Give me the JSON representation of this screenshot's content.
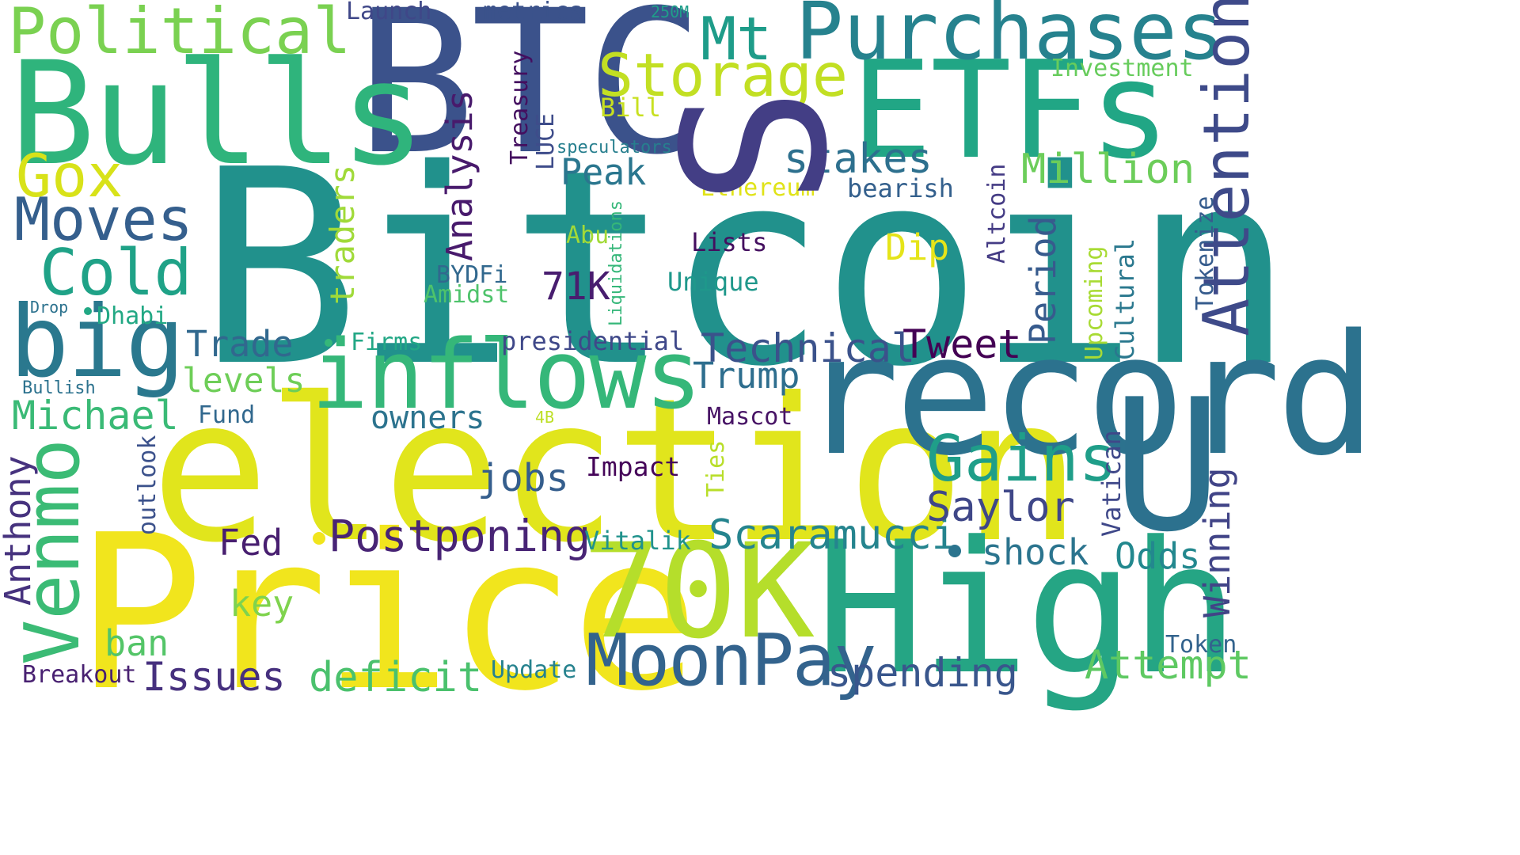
{
  "words": [
    {
      "text": "Bitcoin",
      "color": "#21918c"
    },
    {
      "text": "election",
      "color": "#e1e51c"
    },
    {
      "text": "Price",
      "color": "#f1e51d"
    },
    {
      "text": "BTC",
      "color": "#3b528b"
    },
    {
      "text": "High",
      "color": "#25a584"
    },
    {
      "text": "record",
      "color": "#2c728e"
    },
    {
      "text": "Bulls",
      "color": "#2fb47c"
    },
    {
      "text": "ETFs",
      "color": "#21a685"
    },
    {
      "text": "U",
      "color": "#2c718e"
    },
    {
      "text": "S",
      "color": "#433e85"
    },
    {
      "text": "70K",
      "color": "#b5de2b"
    },
    {
      "text": "inflows",
      "color": "#35b779"
    },
    {
      "text": "Purchases",
      "color": "#26828e"
    },
    {
      "text": "MoonPay",
      "color": "#33638d"
    },
    {
      "text": "Attention",
      "color": "#3e4a89"
    },
    {
      "text": "big",
      "color": "#2a788e"
    },
    {
      "text": "Venmo",
      "color": "#3bbb75"
    },
    {
      "text": "Political",
      "color": "#7ad151"
    },
    {
      "text": "Storage",
      "color": "#c2df23"
    },
    {
      "text": "Gains",
      "color": "#1f9e89"
    },
    {
      "text": "Cold",
      "color": "#1fa287"
    },
    {
      "text": "Moves",
      "color": "#355f8d"
    },
    {
      "text": "Gox",
      "color": "#d8e219"
    },
    {
      "text": "Mt",
      "color": "#1e9c89"
    },
    {
      "text": "Postponing",
      "color": "#482475"
    },
    {
      "text": "Scaramucci",
      "color": "#25848e"
    },
    {
      "text": "Technical",
      "color": "#3b528b"
    },
    {
      "text": "Saylor",
      "color": "#3f4788"
    },
    {
      "text": "Michael",
      "color": "#3aba76"
    },
    {
      "text": "Issues",
      "color": "#46307e"
    },
    {
      "text": "deficit",
      "color": "#4ac16d"
    },
    {
      "text": "spending",
      "color": "#39568c"
    },
    {
      "text": "Attempt",
      "color": "#5ec962"
    },
    {
      "text": "stakes",
      "color": "#2d708e"
    },
    {
      "text": "Million",
      "color": "#6ccd5a"
    },
    {
      "text": "Analysis",
      "color": "#481a6c"
    },
    {
      "text": "Winning",
      "color": "#414487"
    },
    {
      "text": "Anthony",
      "color": "#46327e"
    },
    {
      "text": "Trade",
      "color": "#31688e"
    },
    {
      "text": "levels",
      "color": "#6ece58"
    },
    {
      "text": "owners",
      "color": "#2c738e"
    },
    {
      "text": "jobs",
      "color": "#355e8d"
    },
    {
      "text": "Tweet",
      "color": "#440154"
    },
    {
      "text": "Trump",
      "color": "#2e6e8e"
    },
    {
      "text": "shock",
      "color": "#2b748e"
    },
    {
      "text": "Odds",
      "color": "#23888e"
    },
    {
      "text": "Period",
      "color": "#375b8d"
    },
    {
      "text": "Peak",
      "color": "#2a768e"
    },
    {
      "text": "traders",
      "color": "#a0da39"
    },
    {
      "text": "Fed",
      "color": "#481f70"
    },
    {
      "text": "ban",
      "color": "#54c568"
    },
    {
      "text": "key",
      "color": "#7fd34e"
    },
    {
      "text": "71K",
      "color": "#481d6f"
    },
    {
      "text": "Dip",
      "color": "#e5e419"
    },
    {
      "text": "Cultural",
      "color": "#2a788e"
    },
    {
      "text": "Upcoming",
      "color": "#a8db34"
    },
    {
      "text": "Tokenize",
      "color": "#365c8d"
    },
    {
      "text": "Vatican",
      "color": "#3f4889"
    },
    {
      "text": "Altcoin",
      "color": "#443b84"
    },
    {
      "text": "Impact",
      "color": "#450559"
    },
    {
      "text": "Vitalik",
      "color": "#20928c"
    },
    {
      "text": "Breakout",
      "color": "#482071"
    },
    {
      "text": "Update",
      "color": "#26828e"
    },
    {
      "text": "Treasury",
      "color": "#440f5f"
    },
    {
      "text": "LUCE",
      "color": "#3e4c8a"
    },
    {
      "text": "Ties",
      "color": "#b8de29"
    },
    {
      "text": "Mascot",
      "color": "#471365"
    },
    {
      "text": "Unique",
      "color": "#1f988b"
    },
    {
      "text": "Lists",
      "color": "#440f5f"
    },
    {
      "text": "presidential",
      "color": "#3f4889"
    },
    {
      "text": "Firms",
      "color": "#22a785"
    },
    {
      "text": "Amidst",
      "color": "#4ec36b"
    },
    {
      "text": "BYDFi",
      "color": "#31688e"
    },
    {
      "text": "Abu",
      "color": "#a2da37"
    },
    {
      "text": "Dhabi",
      "color": "#22a884"
    },
    {
      "text": "Ethereum",
      "color": "#e0e318"
    },
    {
      "text": "bearish",
      "color": "#34608d"
    },
    {
      "text": "speculators",
      "color": "#277f8e"
    },
    {
      "text": "Bill",
      "color": "#c8e020"
    },
    {
      "text": "Investment",
      "color": "#67cc5c"
    },
    {
      "text": "Launch",
      "color": "#3f4788"
    },
    {
      "text": "metrics",
      "color": "#3b528b"
    },
    {
      "text": "250M",
      "color": "#1f9e89"
    },
    {
      "text": "Drop",
      "color": "#2c728e"
    },
    {
      "text": "Bullish",
      "color": "#2c728e"
    },
    {
      "text": "Fund",
      "color": "#31688e"
    },
    {
      "text": "4B",
      "color": "#bddf26"
    },
    {
      "text": "outlook",
      "color": "#3b518b"
    },
    {
      "text": "Liquidations",
      "color": "#35b779"
    },
    {
      "text": "Token",
      "color": "#33638d"
    },
    {
      "text": "dot",
      "color": "#21918c"
    }
  ]
}
